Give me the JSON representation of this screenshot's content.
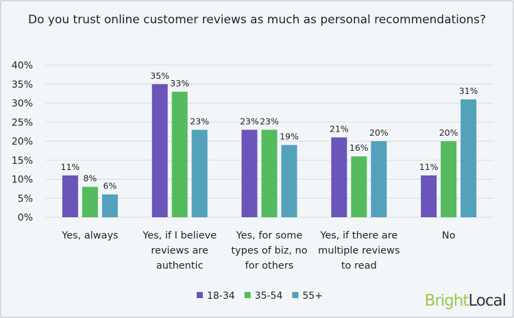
{
  "chart_data": {
    "type": "bar",
    "title": "Do you trust online customer reviews as much as personal recommendations?",
    "categories": [
      "Yes, always",
      "Yes, if I believe reviews are authentic",
      "Yes, for some types of biz, no for others",
      "Yes, if there are multiple reviews to read",
      "No"
    ],
    "category_lines": [
      [
        "Yes, always"
      ],
      [
        "Yes, if I believe",
        "reviews are",
        "authentic"
      ],
      [
        "Yes, for some",
        "types of biz, no",
        "for others"
      ],
      [
        "Yes, if there are",
        "multiple reviews",
        "to read"
      ],
      [
        "No"
      ]
    ],
    "series": [
      {
        "name": "18-34",
        "color": "#6a55b8",
        "values": [
          11,
          35,
          23,
          21,
          11
        ]
      },
      {
        "name": "35-54",
        "color": "#55bb5e",
        "values": [
          8,
          33,
          23,
          16,
          20
        ]
      },
      {
        "name": "55+",
        "color": "#54a1bb",
        "values": [
          6,
          23,
          19,
          20,
          31
        ]
      }
    ],
    "ylim": [
      0,
      40
    ],
    "yticks": [
      "0%",
      "5%",
      "10%",
      "15%",
      "20%",
      "25%",
      "30%",
      "35%",
      "40%"
    ],
    "value_suffix": "%",
    "grid": true,
    "legend_position": "bottom"
  },
  "logo": {
    "part1": "Bright",
    "part2": "Local"
  }
}
